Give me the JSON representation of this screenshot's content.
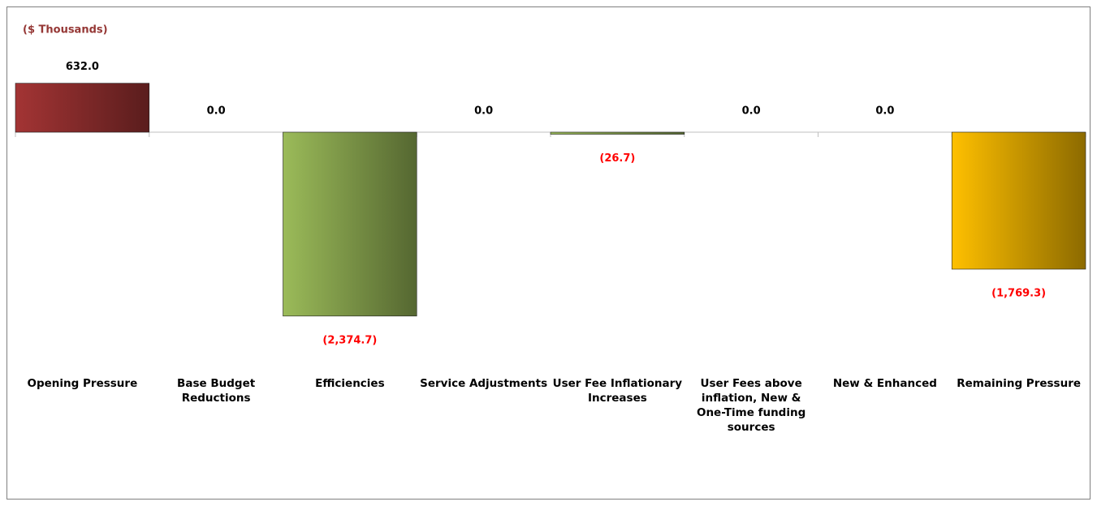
{
  "chart_data": {
    "type": "bar",
    "title": "($ Thousands)",
    "categories": [
      "Opening Pressure",
      "Base Budget Reductions",
      "Efficiencies",
      "Service Adjustments",
      "User Fee Inflationary Increases",
      "User Fees above inflation, New & One-Time funding sources",
      "New & Enhanced",
      "Remaining Pressure"
    ],
    "values": [
      632.0,
      0,
      -2374.7,
      0,
      -26.7,
      0,
      0,
      -1769.3
    ],
    "value_labels": [
      "632.0",
      "0.0",
      "(2,374.7)",
      "0.0",
      "(26.7)",
      "0.0",
      "0.0",
      "(1,769.3)"
    ],
    "colors": [
      "#a33434",
      "#9bbb59",
      "#9bbb59",
      "#9bbb59",
      "#9bbb59",
      "#9bbb59",
      "#9bbb59",
      "#ffc000"
    ],
    "negative_label_color": "#ff0000"
  }
}
